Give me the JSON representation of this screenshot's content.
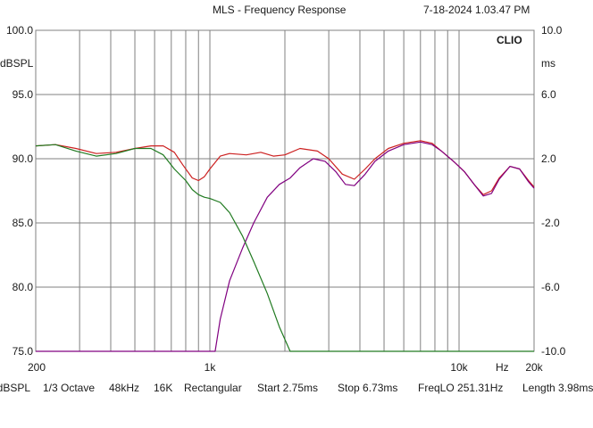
{
  "header": {
    "title": "MLS - Frequency Response",
    "timestamp": "7-18-2024 1.03.47 PM",
    "brand": "CLIO"
  },
  "axes": {
    "left_unit": "dBSPL",
    "right_unit": "ms",
    "x_unit": "Hz"
  },
  "footer": {
    "unit": "dBSPL",
    "smoothing": "1/3 Octave",
    "sample_rate": "48kHz",
    "fft_size": "16K",
    "window": "Rectangular",
    "start": "Start 2.75ms",
    "stop": "Stop 6.73ms",
    "freq_lo": "FreqLO 251.31Hz",
    "length": "Length 3.98ms"
  },
  "colors": {
    "background": "#ffffff",
    "grid": "#808080",
    "red_curve": "#cc2020",
    "purple_curve": "#800080",
    "green_curve": "#207a20"
  },
  "chart_data": {
    "type": "line",
    "title": "MLS - Frequency Response",
    "xscale": "log",
    "xlim": [
      200,
      20000
    ],
    "ylim": [
      75,
      100
    ],
    "y2lim": [
      -10,
      10
    ],
    "grid": true,
    "x_ticks": [
      {
        "value": 200,
        "label": "200"
      },
      {
        "value": 1000,
        "label": "1k"
      },
      {
        "value": 10000,
        "label": "10k"
      },
      {
        "value": 20000,
        "label": "20k"
      }
    ],
    "y_ticks_left": [
      {
        "value": 100,
        "label": "100.0"
      },
      {
        "value": 95,
        "label": "95.0"
      },
      {
        "value": 90,
        "label": "90.0"
      },
      {
        "value": 85,
        "label": "85.0"
      },
      {
        "value": 80,
        "label": "80.0"
      },
      {
        "value": 75,
        "label": "75.0"
      }
    ],
    "y_ticks_right": [
      {
        "value": 10,
        "label": "10.0"
      },
      {
        "value": 6,
        "label": "6.0"
      },
      {
        "value": 2,
        "label": "2.0"
      },
      {
        "value": -2,
        "label": "-2.0"
      },
      {
        "value": -6,
        "label": "-6.0"
      },
      {
        "value": -10,
        "label": "-10.0"
      }
    ],
    "series": [
      {
        "color": "#cc2020",
        "x": [
          200,
          240,
          290,
          350,
          420,
          500,
          580,
          650,
          720,
          780,
          850,
          900,
          950,
          1000,
          1100,
          1200,
          1400,
          1600,
          1800,
          2000,
          2300,
          2700,
          3000,
          3400,
          3800,
          4200,
          4600,
          5200,
          6000,
          7000,
          7800,
          8500,
          9500,
          10500,
          11500,
          12500,
          13500,
          14500,
          16000,
          17500,
          19000,
          20000
        ],
        "y": [
          91.0,
          91.1,
          90.8,
          90.4,
          90.5,
          90.8,
          91.0,
          91.0,
          90.5,
          89.5,
          88.5,
          88.3,
          88.6,
          89.2,
          90.2,
          90.4,
          90.3,
          90.5,
          90.2,
          90.3,
          90.8,
          90.6,
          90.0,
          88.8,
          88.4,
          89.2,
          90.0,
          90.8,
          91.2,
          91.4,
          91.2,
          90.6,
          89.8,
          89.0,
          88.0,
          87.2,
          87.5,
          88.5,
          89.4,
          89.2,
          88.3,
          87.8
        ]
      },
      {
        "color": "#800080",
        "x": [
          200,
          240,
          290,
          350,
          420,
          500,
          580,
          650,
          720,
          780,
          850,
          900,
          950,
          1000,
          1050,
          1100,
          1200,
          1350,
          1500,
          1700,
          1900,
          2100,
          2300,
          2600,
          2900,
          3200,
          3500,
          3800,
          4200,
          4600,
          5200,
          6000,
          7000,
          7800,
          8500,
          9500,
          10500,
          11500,
          12500,
          13500,
          14500,
          16000,
          17500,
          19000,
          20000
        ],
        "y": [
          75.0,
          75.0,
          75.0,
          75.0,
          75.0,
          75.0,
          75.0,
          75.0,
          75.0,
          75.0,
          75.0,
          75.0,
          75.0,
          75.0,
          75.0,
          77.5,
          80.5,
          83.0,
          85.0,
          87.0,
          88.0,
          88.5,
          89.3,
          90.0,
          89.8,
          89.0,
          88.0,
          87.9,
          88.8,
          89.8,
          90.6,
          91.1,
          91.3,
          91.1,
          90.6,
          89.8,
          89.0,
          88.0,
          87.1,
          87.3,
          88.4,
          89.4,
          89.2,
          88.2,
          87.7
        ]
      },
      {
        "color": "#207a20",
        "x": [
          200,
          240,
          290,
          350,
          420,
          500,
          580,
          650,
          720,
          800,
          850,
          900,
          950,
          1000,
          1100,
          1200,
          1350,
          1500,
          1700,
          1900,
          2100,
          2300,
          3000,
          5000,
          10000,
          20000
        ],
        "y": [
          91.0,
          91.1,
          90.6,
          90.2,
          90.4,
          90.8,
          90.8,
          90.3,
          89.2,
          88.3,
          87.6,
          87.2,
          87.0,
          86.9,
          86.6,
          85.8,
          84.0,
          82.0,
          79.5,
          76.9,
          75.0,
          75.0,
          75.0,
          75.0,
          75.0,
          75.0
        ]
      }
    ]
  }
}
